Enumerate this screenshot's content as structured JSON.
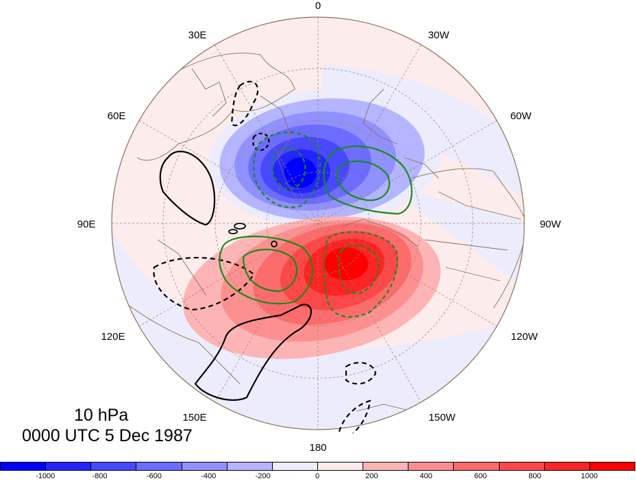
{
  "title": {
    "level": "10 hPa",
    "time": "0000 UTC 5 Dec 1987"
  },
  "longitude_labels": {
    "top": "0",
    "top_left_30": "30E",
    "top_right_30": "30W",
    "left_60": "60E",
    "right_60": "60W",
    "left_90": "90E",
    "right_90": "90W",
    "left_120": "120E",
    "right_120": "120W",
    "left_150": "150E",
    "right_150": "150W",
    "bottom": "180"
  },
  "colorbar": {
    "colors": [
      "#0000ff",
      "#2424ff",
      "#4848ff",
      "#6c6cff",
      "#9090ff",
      "#b4b4ff",
      "#ececfc",
      "#fcecec",
      "#fcb4b4",
      "#fc9090",
      "#fc6c6c",
      "#fc4848",
      "#fc2424",
      "#ff0000"
    ],
    "tick_labels": [
      "-1000",
      "-800",
      "-600",
      "-400",
      "-200",
      "0",
      "200",
      "400",
      "600",
      "800",
      "1000"
    ]
  },
  "colors": {
    "coastline": "#8c6e58",
    "graticule": "#a0826e",
    "negative_contour": "#000000",
    "positive_contour": "#000000",
    "green_contour": "#1a8a1a"
  }
}
